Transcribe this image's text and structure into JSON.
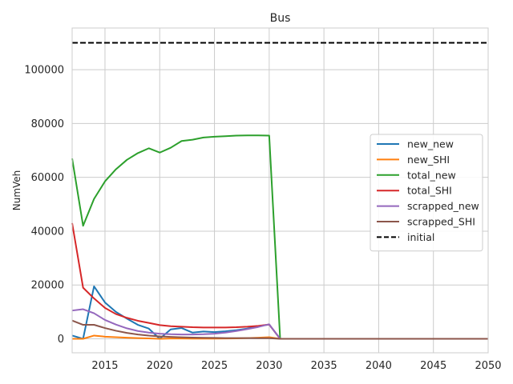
{
  "chart_data": {
    "type": "line",
    "title": "Bus",
    "xlabel": "",
    "ylabel": "NumVeh",
    "xlim": [
      2012,
      2050
    ],
    "ylim": [
      -5200,
      115500
    ],
    "xticks": [
      2015,
      2020,
      2025,
      2030,
      2035,
      2040,
      2045,
      2050
    ],
    "yticks": [
      0,
      20000,
      40000,
      60000,
      80000,
      100000
    ],
    "grid": true,
    "legend_position": "center-right",
    "x": [
      2012,
      2013,
      2014,
      2015,
      2016,
      2017,
      2018,
      2019,
      2020,
      2021,
      2022,
      2023,
      2024,
      2025,
      2026,
      2027,
      2028,
      2029,
      2030,
      2031,
      2032,
      2033,
      2034,
      2035,
      2036,
      2037,
      2038,
      2039,
      2040,
      2041,
      2042,
      2043,
      2044,
      2045,
      2046,
      2047,
      2048,
      2049,
      2050
    ],
    "series": [
      {
        "name": "new_new",
        "color": "#1f77b4",
        "dash": "solid",
        "values": [
          1200,
          0,
          19500,
          13500,
          10000,
          7500,
          5200,
          3800,
          0,
          3500,
          4000,
          2300,
          2700,
          2500,
          2800,
          3200,
          3800,
          4700,
          5300,
          0,
          0,
          0,
          0,
          0,
          0,
          0,
          0,
          0,
          0,
          0,
          0,
          0,
          0,
          0,
          0,
          0,
          0,
          0,
          0
        ]
      },
      {
        "name": "new_SHI",
        "color": "#ff7f0e",
        "dash": "solid",
        "values": [
          0,
          0,
          1200,
          800,
          600,
          400,
          250,
          150,
          0,
          100,
          100,
          80,
          90,
          90,
          100,
          150,
          250,
          400,
          600,
          0,
          0,
          0,
          0,
          0,
          0,
          0,
          0,
          0,
          0,
          0,
          0,
          0,
          0,
          0,
          0,
          0,
          0,
          0,
          0
        ]
      },
      {
        "name": "total_new",
        "color": "#2ca02c",
        "dash": "solid",
        "values": [
          67000,
          42000,
          52000,
          58500,
          63000,
          66500,
          69000,
          70800,
          69200,
          71000,
          73500,
          74000,
          74800,
          75100,
          75300,
          75500,
          75600,
          75600,
          75500,
          0,
          0,
          0,
          0,
          0,
          0,
          0,
          0,
          0,
          0,
          0,
          0,
          0,
          0,
          0,
          0,
          0,
          0,
          0,
          0
        ]
      },
      {
        "name": "total_SHI",
        "color": "#d62728",
        "dash": "solid",
        "values": [
          43000,
          19000,
          15000,
          11500,
          9200,
          7800,
          6700,
          5900,
          5100,
          4700,
          4500,
          4300,
          4200,
          4200,
          4200,
          4300,
          4500,
          4800,
          5300,
          0,
          0,
          0,
          0,
          0,
          0,
          0,
          0,
          0,
          0,
          0,
          0,
          0,
          0,
          0,
          0,
          0,
          0,
          0,
          0
        ]
      },
      {
        "name": "scrapped_new",
        "color": "#9467bd",
        "dash": "solid",
        "values": [
          10500,
          11000,
          9500,
          7000,
          5300,
          3900,
          2900,
          2300,
          1900,
          1700,
          1600,
          1600,
          1700,
          1900,
          2300,
          2900,
          3600,
          4400,
          5400,
          0,
          0,
          0,
          0,
          0,
          0,
          0,
          0,
          0,
          0,
          0,
          0,
          0,
          0,
          0,
          0,
          0,
          0,
          0,
          0
        ]
      },
      {
        "name": "scrapped_SHI",
        "color": "#8c564b",
        "dash": "solid",
        "values": [
          6800,
          5200,
          5200,
          4000,
          3000,
          2200,
          1600,
          1200,
          900,
          700,
          550,
          450,
          380,
          320,
          280,
          260,
          250,
          240,
          230,
          0,
          0,
          0,
          0,
          0,
          0,
          0,
          0,
          0,
          0,
          0,
          0,
          0,
          0,
          0,
          0,
          0,
          0,
          0,
          0
        ]
      },
      {
        "name": "initial",
        "color": "#000000",
        "dash": "dashed",
        "values": [
          110000,
          110000,
          110000,
          110000,
          110000,
          110000,
          110000,
          110000,
          110000,
          110000,
          110000,
          110000,
          110000,
          110000,
          110000,
          110000,
          110000,
          110000,
          110000,
          110000,
          110000,
          110000,
          110000,
          110000,
          110000,
          110000,
          110000,
          110000,
          110000,
          110000,
          110000,
          110000,
          110000,
          110000,
          110000,
          110000,
          110000,
          110000,
          110000
        ]
      }
    ]
  }
}
